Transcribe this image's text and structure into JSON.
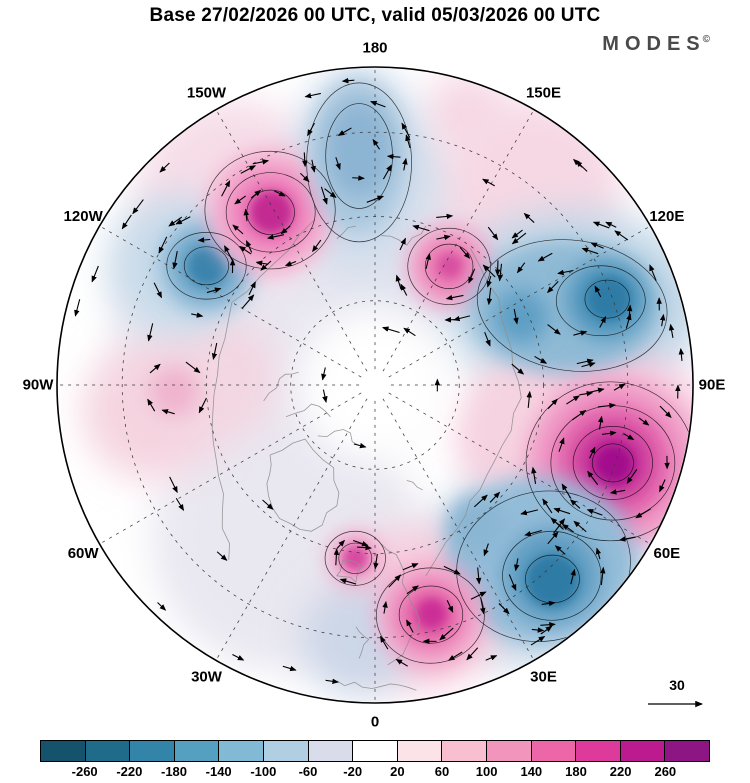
{
  "header": {
    "title": "Base 27/02/2026 00 UTC, valid 05/03/2026 00 UTC",
    "logo_text": "MODES",
    "logo_sup": "©"
  },
  "chart_data": {
    "type": "heatmap",
    "title": "Base 27/02/2026 00 UTC, valid 05/03/2026 00 UTC",
    "projection": "north-polar-stereographic",
    "field_background": "#ffffff",
    "vector_scale_label": "30",
    "meridian_labels": [
      {
        "label": "180",
        "angle": 0
      },
      {
        "label": "150E",
        "angle": 30
      },
      {
        "label": "120E",
        "angle": 60
      },
      {
        "label": "90E",
        "angle": 90
      },
      {
        "label": "60E",
        "angle": 120
      },
      {
        "label": "30E",
        "angle": 150
      },
      {
        "label": "0",
        "angle": 180
      },
      {
        "label": "30W",
        "angle": 210
      },
      {
        "label": "60W",
        "angle": 240
      },
      {
        "label": "90W",
        "angle": 270
      },
      {
        "label": "120W",
        "angle": 300
      },
      {
        "label": "150W",
        "angle": 330
      }
    ],
    "graticule": {
      "lat_circle_fracs": [
        0.265,
        0.53,
        0.795
      ],
      "meridian_step_deg": 30
    },
    "colorbar": {
      "tick_labels": [
        "-260",
        "-220",
        "-180",
        "-140",
        "-100",
        "-60",
        "-20",
        "20",
        "60",
        "100",
        "140",
        "180",
        "220",
        "260"
      ],
      "segment_colors": [
        "#14536b",
        "#1f6b8a",
        "#3285a8",
        "#55a0c0",
        "#82b9d4",
        "#b1cfe3",
        "#d9dcea",
        "#ffffff",
        "#fbe3e8",
        "#f7bfd0",
        "#f295bd",
        "#ec66a8",
        "#de3a9c",
        "#bc1b90",
        "#8e1684"
      ]
    },
    "blobs": [
      {
        "x": -0.3,
        "y": -0.2,
        "r": 0.52,
        "color": "#e9e7f0",
        "blur": 18
      },
      {
        "x": -0.28,
        "y": 0.48,
        "r": 0.42,
        "color": "#e9e7f0",
        "blur": 18
      },
      {
        "x": 0.05,
        "y": -0.52,
        "r": 0.3,
        "color": "#dfe3ee",
        "blur": 18
      },
      {
        "x": -0.45,
        "y": -0.6,
        "r": 0.3,
        "color": "#f6dde8",
        "blur": 18
      },
      {
        "x": 0.5,
        "y": -0.62,
        "r": 0.28,
        "color": "#f6d8e4",
        "blur": 18
      },
      {
        "x": 0.29,
        "y": -0.85,
        "r": 0.14,
        "color": "#f6d8e4",
        "blur": 18
      },
      {
        "x": 0.62,
        "y": -0.25,
        "rx": 0.42,
        "ry": 0.3,
        "color": "#c2d7e7",
        "blur": 18
      },
      {
        "x": 0.7,
        "y": 0.22,
        "rx": 0.4,
        "ry": 0.33,
        "color": "#f7c6db",
        "blur": 18
      },
      {
        "x": 0.5,
        "y": 0.58,
        "rx": 0.37,
        "ry": 0.31,
        "color": "#c8dae9",
        "blur": 18
      },
      {
        "x": 0.15,
        "y": 0.7,
        "r": 0.26,
        "color": "#f8cede",
        "blur": 18
      },
      {
        "x": -0.7,
        "y": 0.08,
        "r": 0.22,
        "color": "#f5d4e0",
        "blur": 18
      },
      {
        "x": -0.5,
        "y": -0.02,
        "r": 0.2,
        "color": "#f3d7e2",
        "blur": 18
      },
      {
        "x": -0.05,
        "y": 0.8,
        "r": 0.18,
        "color": "#ccd7e8",
        "blur": 18
      },
      {
        "x": 0.43,
        "y": 0.12,
        "r": 0.18,
        "color": "#f6d3e0",
        "blur": 18
      },
      {
        "x": -0.62,
        "y": -0.38,
        "r": 0.22,
        "color": "#c9dbea",
        "blur": 18
      },
      {
        "x": -0.05,
        "y": -0.7,
        "rx": 0.2,
        "ry": 0.3,
        "color": "#c9d9ea",
        "blur": 18
      },
      {
        "x": 0.0,
        "y": 0.0,
        "r": 0.24,
        "color": "#ffffff",
        "blur": 18
      },
      {
        "x": -0.53,
        "y": -0.375,
        "r": 0.15,
        "color": "#93bcd8",
        "blur": 10
      },
      {
        "x": -0.53,
        "y": -0.375,
        "r": 0.095,
        "color": "#5e9cc1",
        "blur": 10
      },
      {
        "x": -0.528,
        "y": -0.372,
        "r": 0.058,
        "color": "#3a84ad",
        "blur": 5
      },
      {
        "x": -0.33,
        "y": -0.545,
        "r": 0.2,
        "color": "#f4b3d2",
        "blur": 10
      },
      {
        "x": -0.328,
        "y": -0.543,
        "r": 0.13,
        "color": "#ec7ab8",
        "blur": 10
      },
      {
        "x": -0.326,
        "y": -0.543,
        "r": 0.068,
        "color": "#c32a92",
        "blur": 5
      },
      {
        "x": -0.055,
        "y": -0.72,
        "rx": 0.15,
        "ry": 0.24,
        "color": "#a9c7de",
        "blur": 10
      },
      {
        "x": -0.05,
        "y": -0.74,
        "rx": 0.1,
        "ry": 0.15,
        "color": "#8cb4d3",
        "blur": 10
      },
      {
        "x": 0.233,
        "y": -0.373,
        "r": 0.135,
        "color": "#f2a6ca",
        "blur": 10
      },
      {
        "x": 0.233,
        "y": -0.373,
        "r": 0.075,
        "color": "#e66cab",
        "blur": 10
      },
      {
        "x": 0.236,
        "y": -0.375,
        "r": 0.035,
        "color": "#d64da0",
        "blur": 5
      },
      {
        "x": 0.6,
        "y": -0.245,
        "rx": 0.3,
        "ry": 0.21,
        "color": "#8fbad5",
        "blur": 10
      },
      {
        "x": 0.73,
        "y": -0.27,
        "r": 0.125,
        "color": "#4f94bb",
        "blur": 10
      },
      {
        "x": 0.735,
        "y": -0.272,
        "r": 0.07,
        "color": "#2e7ca6",
        "blur": 5
      },
      {
        "x": 0.46,
        "y": -0.215,
        "r": 0.085,
        "color": "#5f9fc4",
        "blur": 10
      },
      {
        "x": 0.745,
        "y": 0.245,
        "r": 0.27,
        "color": "#f09cc7",
        "blur": 10
      },
      {
        "x": 0.748,
        "y": 0.245,
        "r": 0.185,
        "color": "#e263ab",
        "blur": 10
      },
      {
        "x": 0.748,
        "y": 0.245,
        "r": 0.115,
        "color": "#c22d97",
        "blur": 10
      },
      {
        "x": 0.75,
        "y": 0.248,
        "r": 0.062,
        "color": "#a30f8d",
        "blur": 5
      },
      {
        "x": 0.52,
        "y": 0.55,
        "rx": 0.3,
        "ry": 0.26,
        "color": "#93bcd8",
        "blur": 10
      },
      {
        "x": 0.556,
        "y": 0.6,
        "r": 0.15,
        "color": "#5e9cc1",
        "blur": 10
      },
      {
        "x": 0.558,
        "y": 0.615,
        "r": 0.085,
        "color": "#2e7ca6",
        "blur": 5
      },
      {
        "x": 0.32,
        "y": 0.44,
        "r": 0.09,
        "color": "#8ab6d3",
        "blur": 10
      },
      {
        "x": 0.174,
        "y": 0.725,
        "r": 0.17,
        "color": "#f2a6ca",
        "blur": 10
      },
      {
        "x": 0.174,
        "y": 0.725,
        "r": 0.1,
        "color": "#e360a6",
        "blur": 10
      },
      {
        "x": 0.178,
        "y": 0.72,
        "r": 0.048,
        "color": "#cb2d96",
        "blur": 5
      },
      {
        "x": -0.062,
        "y": 0.545,
        "r": 0.085,
        "color": "#f0a0c8",
        "blur": 10
      },
      {
        "x": -0.062,
        "y": 0.545,
        "r": 0.042,
        "color": "#d84aa0",
        "blur": 5
      },
      {
        "x": -0.63,
        "y": 0.02,
        "r": 0.08,
        "color": "#f0b4ce",
        "blur": 10
      }
    ],
    "contours": [
      {
        "x": -0.53,
        "y": -0.375,
        "rx": 0.07,
        "ry": 0.06
      },
      {
        "x": -0.53,
        "y": -0.375,
        "rx": 0.125,
        "ry": 0.105
      },
      {
        "x": -0.328,
        "y": -0.543,
        "rx": 0.075,
        "ry": 0.07
      },
      {
        "x": -0.328,
        "y": -0.543,
        "rx": 0.14,
        "ry": 0.125
      },
      {
        "x": -0.33,
        "y": -0.55,
        "rx": 0.205,
        "ry": 0.185
      },
      {
        "x": -0.05,
        "y": -0.72,
        "rx": 0.105,
        "ry": 0.165
      },
      {
        "x": -0.05,
        "y": -0.7,
        "rx": 0.165,
        "ry": 0.25
      },
      {
        "x": 0.233,
        "y": -0.373,
        "rx": 0.075,
        "ry": 0.07
      },
      {
        "x": 0.233,
        "y": -0.373,
        "rx": 0.13,
        "ry": 0.12
      },
      {
        "x": 0.73,
        "y": -0.27,
        "rx": 0.07,
        "ry": 0.06
      },
      {
        "x": 0.71,
        "y": -0.265,
        "rx": 0.14,
        "ry": 0.11
      },
      {
        "x": 0.62,
        "y": -0.25,
        "rx": 0.3,
        "ry": 0.205,
        "rot": 8
      },
      {
        "x": 0.748,
        "y": 0.245,
        "rx": 0.065,
        "ry": 0.06
      },
      {
        "x": 0.748,
        "y": 0.245,
        "rx": 0.125,
        "ry": 0.115
      },
      {
        "x": 0.748,
        "y": 0.245,
        "rx": 0.195,
        "ry": 0.18
      },
      {
        "x": 0.74,
        "y": 0.24,
        "rx": 0.265,
        "ry": 0.25
      },
      {
        "x": 0.558,
        "y": 0.61,
        "rx": 0.085,
        "ry": 0.075
      },
      {
        "x": 0.556,
        "y": 0.6,
        "rx": 0.155,
        "ry": 0.14
      },
      {
        "x": 0.53,
        "y": 0.57,
        "rx": 0.275,
        "ry": 0.235,
        "rot": -12
      },
      {
        "x": 0.176,
        "y": 0.722,
        "rx": 0.1,
        "ry": 0.09
      },
      {
        "x": 0.174,
        "y": 0.725,
        "rx": 0.17,
        "ry": 0.15
      },
      {
        "x": -0.062,
        "y": 0.545,
        "rx": 0.052,
        "ry": 0.048
      },
      {
        "x": -0.062,
        "y": 0.545,
        "rx": 0.095,
        "ry": 0.085
      }
    ],
    "vortices": [
      {
        "x": -0.53,
        "y": -0.375,
        "spin": "ccw"
      },
      {
        "x": -0.328,
        "y": -0.543,
        "spin": "cw"
      },
      {
        "x": -0.05,
        "y": -0.72,
        "spin": "ccw"
      },
      {
        "x": 0.233,
        "y": -0.373,
        "spin": "cw"
      },
      {
        "x": 0.62,
        "y": -0.25,
        "spin": "ccw",
        "rings": [
          [
            0.1,
            6
          ],
          [
            0.19,
            10
          ],
          [
            0.28,
            13
          ]
        ]
      },
      {
        "x": 0.748,
        "y": 0.245,
        "spin": "cw",
        "rings": [
          [
            0.09,
            6
          ],
          [
            0.17,
            10
          ],
          [
            0.25,
            13
          ]
        ]
      },
      {
        "x": 0.53,
        "y": 0.58,
        "spin": "ccw",
        "rings": [
          [
            0.1,
            6
          ],
          [
            0.19,
            10
          ]
        ]
      },
      {
        "x": 0.174,
        "y": 0.725,
        "spin": "cw"
      },
      {
        "x": -0.062,
        "y": 0.545,
        "spin": "cw",
        "rings": [
          [
            0.07,
            5
          ]
        ]
      },
      {
        "x": -0.63,
        "y": 0.02,
        "spin": "cw",
        "rings": [
          [
            0.08,
            5
          ]
        ]
      },
      {
        "x": 0.0,
        "y": 0.0,
        "spin": "ccw",
        "rings": [
          [
            0.95,
            20
          ],
          [
            0.72,
            12
          ],
          [
            0.5,
            9
          ],
          [
            0.18,
            6
          ]
        ]
      }
    ],
    "coastlines": [
      [
        [
          0.3,
          -0.43
        ],
        [
          0.39,
          -0.27
        ],
        [
          0.43,
          -0.11
        ],
        [
          0.46,
          0.04
        ],
        [
          0.4,
          0.19
        ],
        [
          0.33,
          0.33
        ],
        [
          0.26,
          0.45
        ],
        [
          0.16,
          0.6
        ]
      ],
      [
        [
          -0.19,
          -0.52
        ],
        [
          -0.32,
          -0.38
        ],
        [
          -0.45,
          -0.26
        ],
        [
          -0.49,
          -0.09
        ],
        [
          -0.51,
          0.09
        ],
        [
          -0.5,
          0.23
        ],
        [
          -0.48,
          0.4
        ],
        [
          -0.46,
          0.55
        ]
      ],
      [
        [
          -0.33,
          0.22
        ],
        [
          -0.22,
          0.17
        ],
        [
          -0.13,
          0.26
        ],
        [
          -0.12,
          0.38
        ],
        [
          -0.2,
          0.46
        ],
        [
          -0.3,
          0.42
        ],
        [
          -0.34,
          0.31
        ],
        [
          -0.33,
          0.22
        ]
      ],
      [
        [
          0.02,
          0.5
        ],
        [
          0.08,
          0.56
        ],
        [
          0.1,
          0.65
        ],
        [
          0.14,
          0.74
        ],
        [
          0.1,
          0.82
        ],
        [
          0.04,
          0.88
        ]
      ],
      [
        [
          -0.1,
          0.55
        ],
        [
          -0.04,
          0.57
        ],
        [
          -0.06,
          0.62
        ],
        [
          -0.12,
          0.6
        ],
        [
          -0.1,
          0.55
        ]
      ],
      [
        [
          -0.06,
          0.76
        ],
        [
          -0.02,
          0.8
        ],
        [
          -0.05,
          0.86
        ]
      ],
      [
        [
          -0.28,
          0.1
        ],
        [
          -0.2,
          0.06
        ],
        [
          -0.14,
          0.1
        ]
      ],
      [
        [
          -0.18,
          0.16
        ],
        [
          -0.1,
          0.14
        ],
        [
          -0.05,
          0.19
        ]
      ],
      [
        [
          -0.35,
          0.05
        ],
        [
          -0.3,
          -0.02
        ],
        [
          -0.24,
          -0.04
        ]
      ],
      [
        [
          0.16,
          -0.5
        ],
        [
          0.1,
          -0.44
        ],
        [
          0.02,
          -0.47
        ]
      ],
      [
        [
          -0.06,
          -0.5
        ],
        [
          -0.12,
          -0.46
        ]
      ],
      [
        [
          0.1,
          0.3
        ],
        [
          0.15,
          0.33
        ]
      ],
      [
        [
          -0.12,
          0.93
        ],
        [
          -0.04,
          0.95
        ],
        [
          0.05,
          0.94
        ],
        [
          0.13,
          0.96
        ]
      ]
    ]
  }
}
